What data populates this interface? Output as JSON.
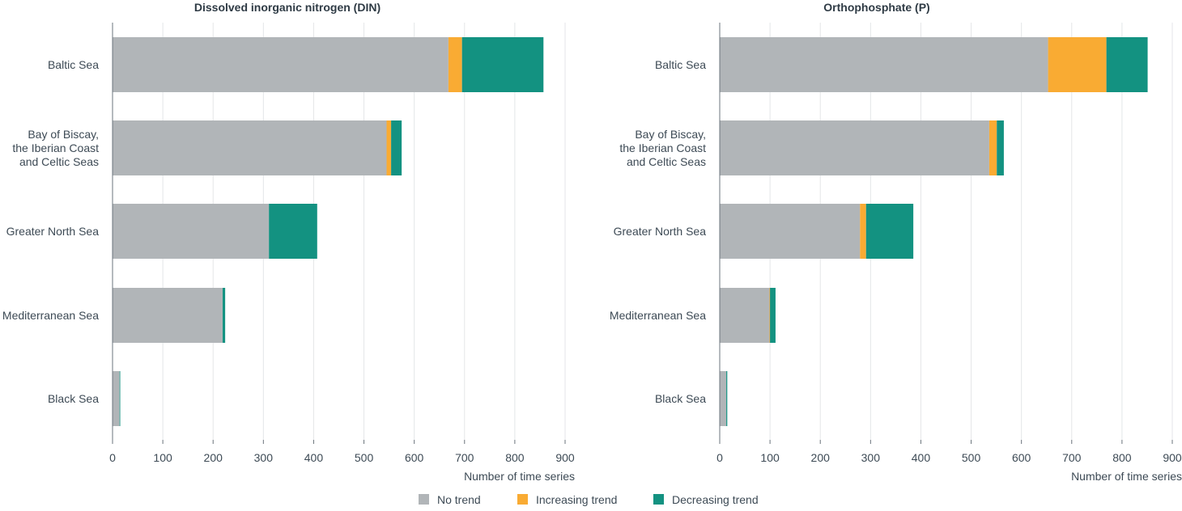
{
  "chart_data": [
    {
      "type": "bar",
      "orientation": "horizontal",
      "stacked": true,
      "title": "Dissolved inorganic nitrogen (DIN)",
      "xlabel": "Number of time series",
      "ylabel": "",
      "xlim": [
        0,
        900
      ],
      "xticks": [
        "0",
        "100",
        "200",
        "300",
        "400",
        "500",
        "600",
        "700",
        "800",
        "900"
      ],
      "grid": true,
      "categories": [
        [
          "Baltic Sea"
        ],
        [
          "Bay of Biscay,",
          "the Iberian Coast",
          "and Celtic Seas"
        ],
        [
          "Greater North Sea"
        ],
        [
          "Mediterranean Sea"
        ],
        [
          "Black Sea"
        ]
      ],
      "series": [
        {
          "name": "No trend",
          "color": "#b1b5b8",
          "values": [
            668,
            545,
            311,
            219,
            14
          ]
        },
        {
          "name": "Increasing trend",
          "color": "#f9ab33",
          "values": [
            27,
            9,
            0,
            0,
            0
          ]
        },
        {
          "name": "Decreasing trend",
          "color": "#139281",
          "values": [
            162,
            21,
            96,
            5,
            1
          ]
        }
      ]
    },
    {
      "type": "bar",
      "orientation": "horizontal",
      "stacked": true,
      "title": "Orthophosphate (P)",
      "xlabel": "Number of time series",
      "ylabel": "",
      "xlim": [
        0,
        900
      ],
      "xticks": [
        "0",
        "100",
        "200",
        "300",
        "400",
        "500",
        "600",
        "700",
        "800",
        "900"
      ],
      "grid": true,
      "categories": [
        [
          "Baltic Sea"
        ],
        [
          "Bay of Biscay,",
          "the Iberian Coast",
          "and Celtic Seas"
        ],
        [
          "Greater North Sea"
        ],
        [
          "Mediterranean Sea"
        ],
        [
          "Black Sea"
        ]
      ],
      "series": [
        {
          "name": "No trend",
          "color": "#b1b5b8",
          "values": [
            653,
            536,
            279,
            99,
            13
          ]
        },
        {
          "name": "Increasing trend",
          "color": "#f9ab33",
          "values": [
            116,
            15,
            12,
            1,
            0
          ]
        },
        {
          "name": "Decreasing trend",
          "color": "#139281",
          "values": [
            82,
            14,
            94,
            11,
            2
          ]
        }
      ]
    }
  ],
  "legend": {
    "placement": "bottom-center",
    "items": [
      {
        "label": "No trend",
        "color": "#b1b5b8"
      },
      {
        "label": "Increasing trend",
        "color": "#f9ab33"
      },
      {
        "label": "Decreasing trend",
        "color": "#139281"
      }
    ]
  }
}
